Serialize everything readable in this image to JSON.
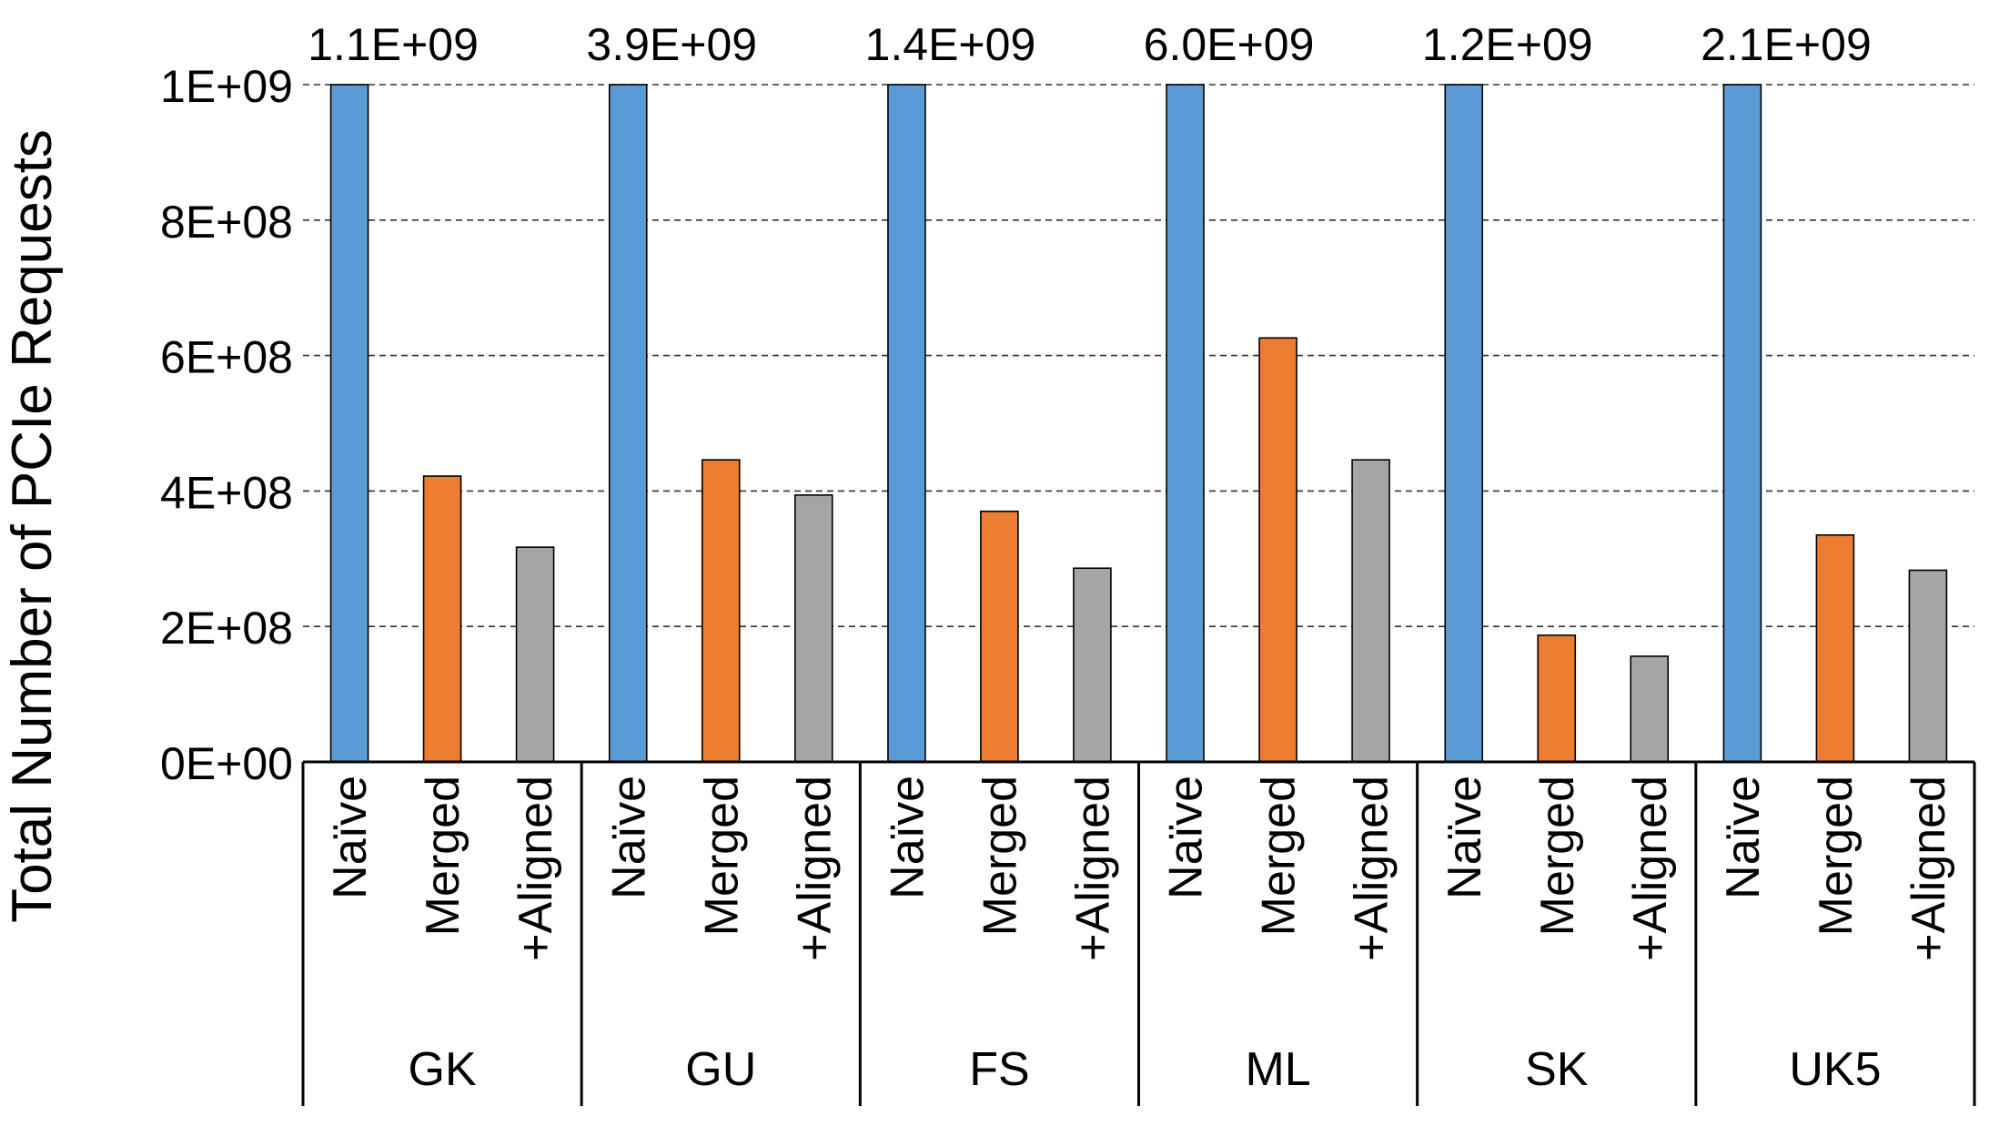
{
  "chart_data": {
    "type": "bar",
    "title": "",
    "xlabel": "",
    "ylabel": "Total Number of PCIe Requests",
    "ylim": [
      0,
      1000000000
    ],
    "y_ticks": [
      {
        "value": 0,
        "label": "0E+00"
      },
      {
        "value": 200000000,
        "label": "2E+08"
      },
      {
        "value": 400000000,
        "label": "4E+08"
      },
      {
        "value": 600000000,
        "label": "6E+08"
      },
      {
        "value": 800000000,
        "label": "8E+08"
      },
      {
        "value": 1000000000,
        "label": "1E+09"
      }
    ],
    "grid": true,
    "legend": "none",
    "bar_labels": [
      "Naïve",
      "Merged",
      "+Aligned"
    ],
    "groups": [
      "GK",
      "GU",
      "FS",
      "ML",
      "SK",
      "UK5"
    ],
    "series": [
      {
        "name": "Naïve",
        "color": "#5B9BD5",
        "values": [
          1100000000,
          3900000000,
          1400000000,
          6000000000,
          1200000000,
          2100000000
        ],
        "value_labels": [
          "1.1E+09",
          "3.9E+09",
          "1.4E+09",
          "6.0E+09",
          "1.2E+09",
          "2.1E+09"
        ]
      },
      {
        "name": "Merged",
        "color": "#ED7D31",
        "values": [
          422000000,
          446000000,
          370000000,
          626000000,
          187000000,
          335000000
        ]
      },
      {
        "name": "+Aligned",
        "color": "#A5A5A5",
        "values": [
          317000000,
          394000000,
          286000000,
          446000000,
          156000000,
          283000000
        ]
      }
    ]
  }
}
